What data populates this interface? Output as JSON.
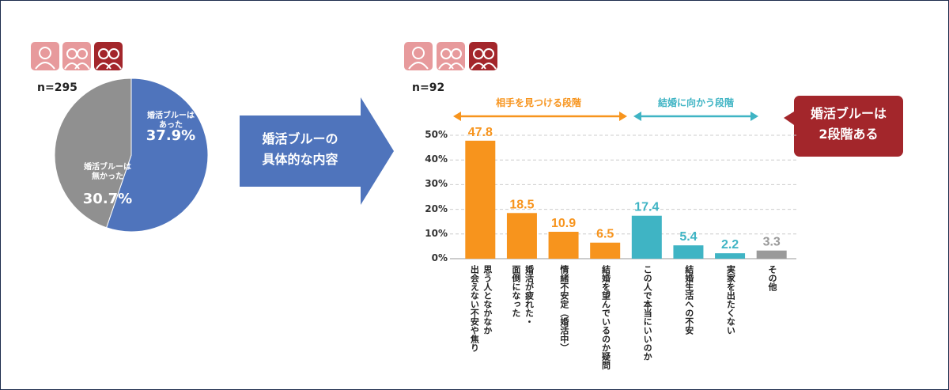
{
  "chart_data": [
    {
      "type": "pie",
      "subtitle": "n=295",
      "categories": [
        "婚活ブルーは\nあった",
        "婚活ブルーは\n無かった"
      ],
      "values": [
        37.9,
        30.7
      ],
      "value_labels": [
        "37.9%",
        "30.7%"
      ],
      "colors": [
        "#4f74bc",
        "#909090"
      ]
    },
    {
      "type": "bar",
      "subtitle": "n=92",
      "categories": [
        "思う人となかなか\n出会えない不安や焦り",
        "婚活が疲れた・\n面倒になった",
        "情緒不安定（婚活中）",
        "結婚を望んでいるのか疑問",
        "この人で本当にいいのか",
        "結婚生活への不安",
        "実家を出たくない",
        "その他"
      ],
      "values": [
        47.8,
        18.5,
        10.9,
        6.5,
        17.4,
        5.4,
        2.2,
        3.3
      ],
      "colors": [
        "#f7941d",
        "#f7941d",
        "#f7941d",
        "#f7941d",
        "#3fb4c4",
        "#3fb4c4",
        "#3fb4c4",
        "#9a9a9a"
      ],
      "ylim": [
        0,
        50
      ],
      "yticks": [
        {
          "value": 0,
          "label": "0%"
        },
        {
          "value": 10,
          "label": "10%"
        },
        {
          "value": 20,
          "label": "20%"
        },
        {
          "value": 30,
          "label": "30%"
        },
        {
          "value": 40,
          "label": "40%"
        },
        {
          "value": 50,
          "label": "50%"
        }
      ],
      "grid": true,
      "groups": [
        {
          "label": "相手を見つける段階",
          "color": "#f7941d"
        },
        {
          "label": "結婚に向かう段階",
          "color": "#3fb4c4"
        }
      ],
      "callout": "婚活ブルーは\n2段階ある"
    }
  ],
  "arrow_label": "婚活ブルーの\n具体的な内容"
}
